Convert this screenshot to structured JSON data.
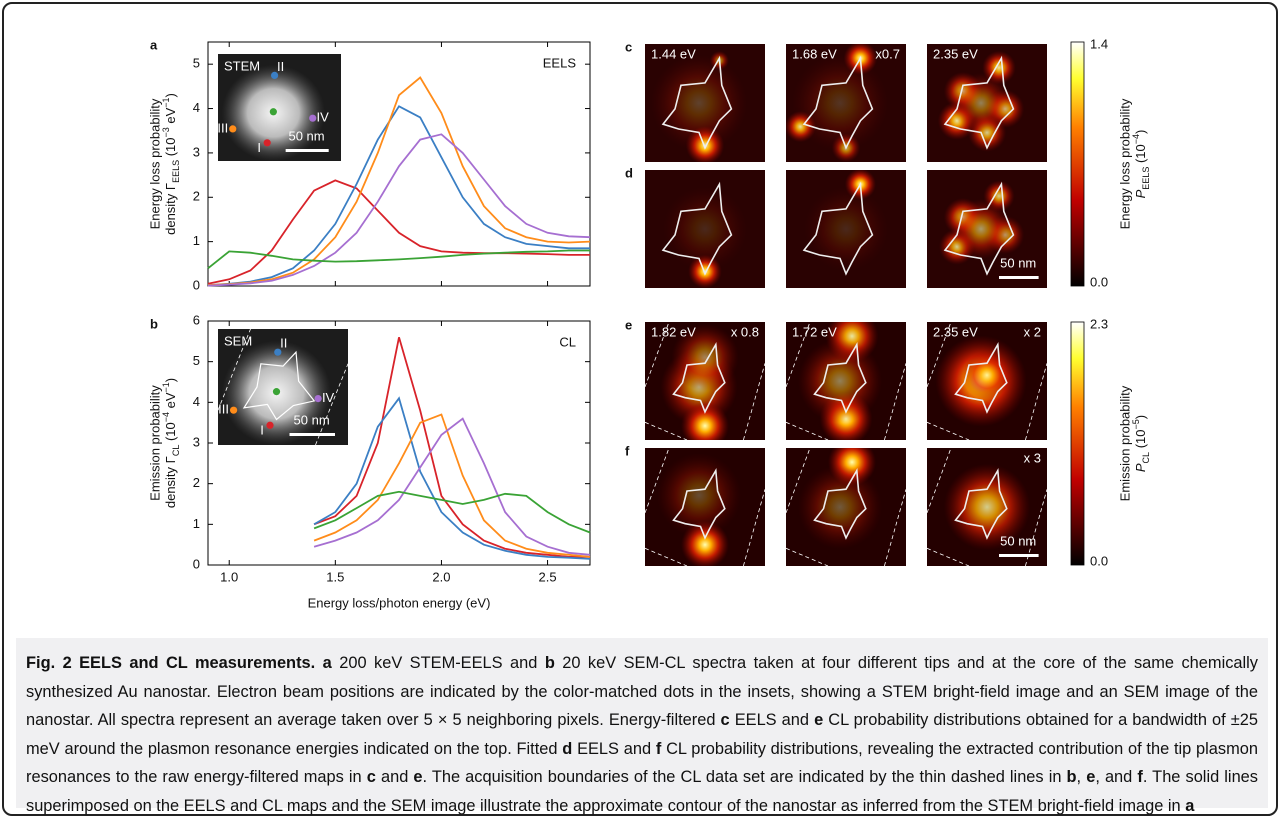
{
  "chart_data": [
    {
      "type": "line",
      "panel_label": "a",
      "corner_label": "EELS",
      "ylabel": {
        "line1": "Energy loss probability",
        "line2": [
          "density Γ",
          "EELS",
          " (10",
          "−3",
          " eV",
          "−1",
          ")"
        ]
      },
      "x": [
        0.9,
        1.0,
        1.1,
        1.2,
        1.3,
        1.4,
        1.5,
        1.6,
        1.7,
        1.8,
        1.9,
        2.0,
        2.1,
        2.2,
        2.3,
        2.4,
        2.5,
        2.6,
        2.7
      ],
      "series": [
        {
          "color": "#d8232a",
          "values": [
            0.05,
            0.15,
            0.35,
            0.8,
            1.5,
            2.15,
            2.38,
            2.2,
            1.7,
            1.2,
            0.9,
            0.78,
            0.75,
            0.74,
            0.74,
            0.73,
            0.72,
            0.7,
            0.7
          ]
        },
        {
          "color": "#3b7fc4",
          "values": [
            0.02,
            0.05,
            0.1,
            0.2,
            0.4,
            0.8,
            1.4,
            2.3,
            3.3,
            4.05,
            3.8,
            2.9,
            2.0,
            1.4,
            1.1,
            0.95,
            0.9,
            0.85,
            0.85
          ]
        },
        {
          "color": "#ff8c1a",
          "values": [
            0.02,
            0.04,
            0.08,
            0.15,
            0.3,
            0.6,
            1.1,
            1.9,
            3.0,
            4.3,
            4.7,
            3.9,
            2.7,
            1.8,
            1.3,
            1.1,
            1.0,
            0.98,
            1.0
          ]
        },
        {
          "color": "#a66fd1",
          "values": [
            0.01,
            0.03,
            0.06,
            0.12,
            0.25,
            0.45,
            0.75,
            1.2,
            1.9,
            2.7,
            3.3,
            3.42,
            3.0,
            2.4,
            1.8,
            1.4,
            1.2,
            1.12,
            1.1
          ]
        },
        {
          "color": "#3aa335",
          "values": [
            0.4,
            0.78,
            0.75,
            0.68,
            0.6,
            0.57,
            0.55,
            0.56,
            0.58,
            0.6,
            0.63,
            0.66,
            0.7,
            0.73,
            0.75,
            0.77,
            0.78,
            0.8,
            0.8
          ]
        }
      ],
      "xlim": [
        0.9,
        2.7
      ],
      "xticks": [
        {
          "value": 1,
          "label": "1.0"
        },
        1.5,
        {
          "value": 2,
          "label": "2.0"
        },
        2.5
      ],
      "show_xtick_labels": false,
      "ylim": [
        0,
        5.5
      ],
      "yticks": [
        0,
        1,
        2,
        3,
        4,
        5
      ],
      "inset": {
        "title": "STEM",
        "scale": "50 nm",
        "tips": [
          "I",
          "II",
          "III",
          "IV"
        ]
      }
    },
    {
      "type": "line",
      "panel_label": "b",
      "corner_label": "CL",
      "ylabel": {
        "line1": "Emission probability",
        "line2": [
          "density Γ",
          "CL",
          " (10",
          "−4",
          " eV",
          "−1",
          ")"
        ]
      },
      "xlabel": "Energy loss/photon energy (eV)",
      "x": [
        0.9,
        1.0,
        1.1,
        1.2,
        1.3,
        1.4,
        1.5,
        1.6,
        1.7,
        1.8,
        1.9,
        2.0,
        2.1,
        2.2,
        2.3,
        2.4,
        2.5,
        2.6,
        2.7
      ],
      "series": [
        {
          "color": "#d8232a",
          "values": [
            null,
            null,
            null,
            null,
            null,
            1.0,
            1.2,
            1.7,
            3.0,
            5.6,
            3.8,
            1.7,
            1.0,
            0.6,
            0.4,
            0.3,
            0.25,
            0.2,
            0.2
          ]
        },
        {
          "color": "#3b7fc4",
          "values": [
            null,
            null,
            null,
            null,
            null,
            1.0,
            1.3,
            2.0,
            3.4,
            4.1,
            2.3,
            1.3,
            0.8,
            0.5,
            0.35,
            0.25,
            0.2,
            0.18,
            0.15
          ]
        },
        {
          "color": "#ff8c1a",
          "values": [
            null,
            null,
            null,
            null,
            null,
            0.6,
            0.8,
            1.1,
            1.6,
            2.5,
            3.5,
            3.7,
            2.2,
            1.1,
            0.6,
            0.4,
            0.3,
            0.25,
            0.2
          ]
        },
        {
          "color": "#a66fd1",
          "values": [
            null,
            null,
            null,
            null,
            null,
            0.45,
            0.6,
            0.8,
            1.1,
            1.6,
            2.4,
            3.2,
            3.6,
            2.5,
            1.3,
            0.7,
            0.45,
            0.3,
            0.25
          ]
        },
        {
          "color": "#3aa335",
          "values": [
            null,
            null,
            null,
            null,
            null,
            0.9,
            1.1,
            1.4,
            1.7,
            1.8,
            1.7,
            1.6,
            1.5,
            1.6,
            1.75,
            1.7,
            1.3,
            1.0,
            0.8
          ]
        }
      ],
      "xlim": [
        0.9,
        2.7
      ],
      "xticks": [
        {
          "value": 1,
          "label": "1.0"
        },
        1.5,
        {
          "value": 2,
          "label": "2.0"
        },
        2.5
      ],
      "show_xtick_labels": true,
      "ylim": [
        0,
        6
      ],
      "yticks": [
        0,
        1,
        2,
        3,
        4,
        5,
        6
      ],
      "inset": {
        "title": "SEM",
        "scale": "50 nm",
        "tips": [
          "I",
          "II",
          "III",
          "IV"
        ]
      }
    }
  ],
  "maps": {
    "rows": [
      {
        "label": "c",
        "panels": [
          {
            "left": "1.44 eV"
          },
          {
            "left": "1.68 eV",
            "right": "x0.7"
          },
          {
            "left": "2.35 eV"
          }
        ]
      },
      {
        "label": "d",
        "panels": [
          {},
          {},
          {
            "scale": "50 nm"
          }
        ]
      },
      {
        "label": "e",
        "panels": [
          {
            "left": "1.82 eV",
            "right": "x 0.8"
          },
          {
            "left": "1.72 eV"
          },
          {
            "left": "2.35 eV",
            "right": "x 2"
          }
        ]
      },
      {
        "label": "f",
        "panels": [
          {},
          {},
          {
            "right": "x 3",
            "scale": "50 nm"
          }
        ]
      }
    ],
    "colorbars": [
      {
        "max": "1.4",
        "min": "0.0",
        "label": "Energy loss probability",
        "symbol": [
          "P",
          "EELS",
          " (10",
          "−4",
          ")"
        ]
      },
      {
        "max": "2.3",
        "min": "0.0",
        "label": "Emission probability",
        "symbol": [
          "P",
          "CL",
          " (10",
          "−5",
          ")"
        ]
      }
    ]
  },
  "caption": {
    "title": "Fig. 2 EELS and CL measurements.",
    "parts": [
      "a",
      " 200 keV STEM-EELS and ",
      "b",
      " 20 keV SEM-CL spectra taken at four different tips and at the core of the same chemically synthesized Au nanostar. Electron beam positions are indicated by the color-matched dots in the insets, showing a STEM bright-field image and an SEM image of the nanostar. All spectra represent an average taken over 5 × 5 neighboring pixels. Energy-filtered ",
      "c",
      " EELS and ",
      "e",
      " CL probability distributions obtained for a bandwidth of ±25 meV around the plasmon resonance energies indicated on the top. Fitted ",
      "d",
      " EELS and ",
      "f",
      " CL probability distributions, revealing the extracted contribution of the tip plasmon resonances to the raw energy-filtered maps in ",
      "c",
      " and ",
      "e",
      ". The acquisition boundaries of the CL data set are indicated by the thin dashed lines in ",
      "b",
      ", ",
      "e",
      ", and ",
      "f",
      ". The solid lines superimposed on the EELS and CL maps and the SEM image illustrate the approximate contour of the nanostar as inferred from the STEM bright-field image in ",
      "a"
    ]
  }
}
